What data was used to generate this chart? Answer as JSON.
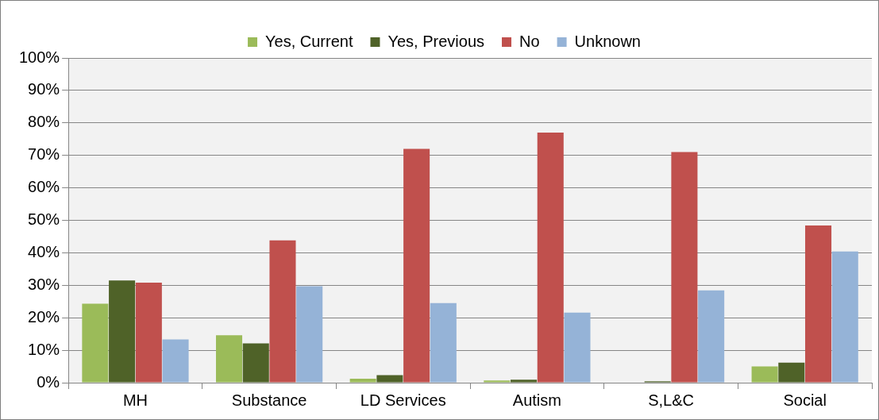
{
  "chart_data": {
    "type": "bar",
    "categories": [
      "MH",
      "Substance",
      "LD Services",
      "Autism",
      "S,L&C",
      "Social"
    ],
    "series": [
      {
        "name": "Yes, Current",
        "color": "#9bbb59",
        "values": [
          24.3,
          14.6,
          1.2,
          0.7,
          0,
          5.0
        ]
      },
      {
        "name": "Yes, Previous",
        "color": "#4f6228",
        "values": [
          31.5,
          12.1,
          2.3,
          0.9,
          0.4,
          6.2
        ]
      },
      {
        "name": "No",
        "color": "#c0504d",
        "values": [
          30.8,
          43.8,
          72.0,
          77.0,
          71.0,
          48.4
        ]
      },
      {
        "name": "Unknown",
        "color": "#95b3d7",
        "values": [
          13.3,
          29.7,
          24.5,
          21.6,
          28.4,
          40.4
        ]
      }
    ],
    "ylim": [
      0,
      100
    ],
    "yticks": [
      {
        "value": 0,
        "label": "0%"
      },
      {
        "value": 10,
        "label": "10%"
      },
      {
        "value": 20,
        "label": "20%"
      },
      {
        "value": 30,
        "label": "30%"
      },
      {
        "value": 40,
        "label": "40%"
      },
      {
        "value": 50,
        "label": "50%"
      },
      {
        "value": 60,
        "label": "60%"
      },
      {
        "value": 70,
        "label": "70%"
      },
      {
        "value": 80,
        "label": "80%"
      },
      {
        "value": 90,
        "label": "90%"
      },
      {
        "value": 100,
        "label": "100%"
      }
    ],
    "grid": "y",
    "legend": "top"
  }
}
